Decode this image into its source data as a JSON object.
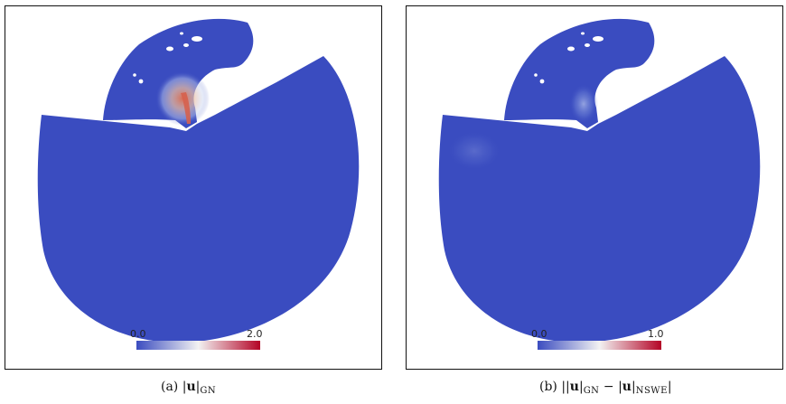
{
  "figures": [
    {
      "id": "a",
      "colorbar": {
        "min_label": "0.0",
        "max_label": "2.0",
        "min": 0.0,
        "max": 2.0,
        "colors": [
          "#3b4cc0",
          "#f2f2f2",
          "#b40426"
        ]
      },
      "caption": {
        "label": "(a)",
        "var": "u",
        "sub": "GN"
      }
    },
    {
      "id": "b",
      "colorbar": {
        "min_label": "0.0",
        "max_label": "1.0",
        "min": 0.0,
        "max": 1.0,
        "colors": [
          "#3b4cc0",
          "#f2f2f2",
          "#b40426"
        ]
      },
      "caption": {
        "label": "(b)",
        "var": "u",
        "sub1": "GN",
        "var2": "u",
        "sub2": "NSWE"
      }
    }
  ],
  "domain_color": "#3a4cc0"
}
